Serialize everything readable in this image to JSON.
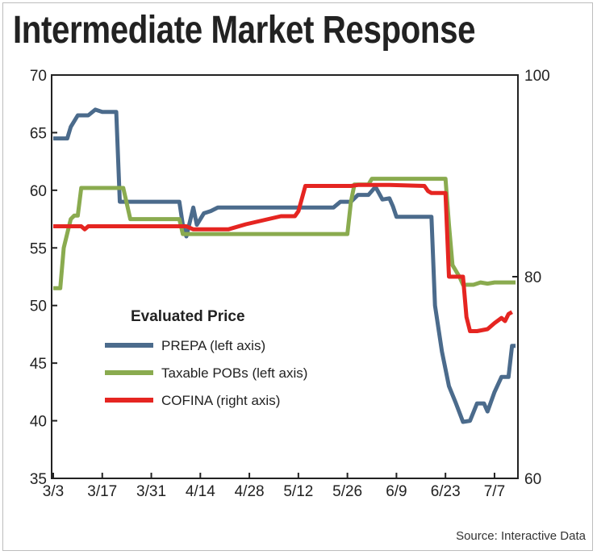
{
  "chart_data": {
    "type": "line",
    "title": "Intermediate Market Response",
    "source": "Source: Interactive Data",
    "legend_title": "Evaluated Price",
    "categories": [
      "3/3",
      "3/17",
      "3/31",
      "4/14",
      "4/28",
      "5/12",
      "5/26",
      "6/9",
      "6/23",
      "7/7"
    ],
    "left_axis": {
      "min": 35,
      "max": 70,
      "ticks": [
        35,
        40,
        45,
        50,
        55,
        60,
        65,
        70
      ]
    },
    "right_axis": {
      "min": 60,
      "max": 100,
      "ticks": [
        60,
        80,
        100
      ]
    },
    "x_range": [
      0,
      132
    ],
    "series": [
      {
        "name": "PREPA (left axis)",
        "axis": "left",
        "color": "#4b6b8c",
        "points": [
          [
            0,
            64.5
          ],
          [
            4,
            64.5
          ],
          [
            5,
            65.5
          ],
          [
            7,
            66.5
          ],
          [
            10,
            66.5
          ],
          [
            12,
            67
          ],
          [
            14,
            66.8
          ],
          [
            18,
            66.8
          ],
          [
            19,
            59
          ],
          [
            36,
            59
          ],
          [
            37,
            57
          ],
          [
            38,
            56
          ],
          [
            40,
            58.5
          ],
          [
            41,
            57
          ],
          [
            43,
            58
          ],
          [
            45,
            58.2
          ],
          [
            47,
            58.5
          ],
          [
            78,
            58.5
          ],
          [
            80,
            58.5
          ],
          [
            82,
            59
          ],
          [
            85,
            59
          ],
          [
            87,
            59.6
          ],
          [
            90,
            59.6
          ],
          [
            92,
            60.3
          ],
          [
            94,
            59.2
          ],
          [
            96,
            59.3
          ],
          [
            97,
            58.6
          ],
          [
            98,
            57.7
          ],
          [
            108,
            57.7
          ],
          [
            109,
            50
          ],
          [
            111,
            46
          ],
          [
            113,
            43
          ],
          [
            115,
            41.5
          ],
          [
            117,
            39.9
          ],
          [
            119,
            40
          ],
          [
            121,
            41.5
          ],
          [
            123,
            41.5
          ],
          [
            124,
            40.8
          ],
          [
            126,
            42.5
          ],
          [
            128,
            43.8
          ],
          [
            130,
            43.8
          ],
          [
            131,
            46.5
          ],
          [
            132,
            46.5
          ]
        ]
      },
      {
        "name": "Taxable POBs (left axis)",
        "axis": "left",
        "color": "#8aab4f",
        "points": [
          [
            0,
            51.5
          ],
          [
            2,
            51.5
          ],
          [
            3,
            55
          ],
          [
            5,
            57.5
          ],
          [
            6,
            57.8
          ],
          [
            7,
            57.8
          ],
          [
            8,
            60.2
          ],
          [
            19,
            60.2
          ],
          [
            20,
            60.2
          ],
          [
            22,
            57.5
          ],
          [
            30,
            57.5
          ],
          [
            36,
            57.5
          ],
          [
            37,
            56.2
          ],
          [
            46,
            56.2
          ],
          [
            83,
            56.2
          ],
          [
            84,
            56.2
          ],
          [
            85,
            59
          ],
          [
            86,
            60.5
          ],
          [
            90,
            60.5
          ],
          [
            91,
            61
          ],
          [
            111,
            61
          ],
          [
            112,
            61
          ],
          [
            113,
            57
          ],
          [
            114,
            53.5
          ],
          [
            116,
            52.5
          ],
          [
            117,
            51.8
          ],
          [
            120,
            51.8
          ],
          [
            122,
            52
          ],
          [
            124,
            51.9
          ],
          [
            126,
            52
          ],
          [
            132,
            52
          ]
        ]
      },
      {
        "name": "COFINA (right axis)",
        "axis": "right",
        "color": "#e52521",
        "points": [
          [
            0,
            85
          ],
          [
            8,
            85
          ],
          [
            9,
            84.7
          ],
          [
            10,
            85
          ],
          [
            38,
            85
          ],
          [
            40,
            84.7
          ],
          [
            50,
            84.7
          ],
          [
            55,
            85.2
          ],
          [
            60,
            85.6
          ],
          [
            65,
            86
          ],
          [
            69,
            86
          ],
          [
            70,
            86.5
          ],
          [
            72,
            89
          ],
          [
            85,
            89
          ],
          [
            87,
            89.1
          ],
          [
            96,
            89.1
          ],
          [
            106,
            89
          ],
          [
            107,
            88.5
          ],
          [
            108,
            88.3
          ],
          [
            112,
            88.3
          ],
          [
            113,
            80
          ],
          [
            117,
            80
          ],
          [
            118,
            76
          ],
          [
            119,
            74.6
          ],
          [
            121,
            74.6
          ],
          [
            124,
            74.8
          ],
          [
            126,
            75.4
          ],
          [
            128,
            75.9
          ],
          [
            129,
            75.6
          ],
          [
            130,
            76.3
          ],
          [
            131,
            76.5
          ]
        ]
      }
    ]
  }
}
